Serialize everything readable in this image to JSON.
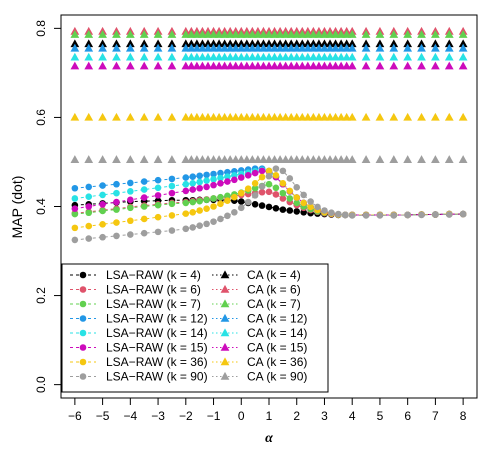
{
  "chart_data": {
    "type": "scatter",
    "title": "",
    "xlabel": "α",
    "ylabel": "MAP (dot)",
    "xlim": [
      -6.5,
      8.5
    ],
    "ylim": [
      -0.03,
      0.83
    ],
    "xticks": [
      "−6",
      "−5",
      "−4",
      "−3",
      "−2",
      "−1",
      "0",
      "1",
      "2",
      "3",
      "4",
      "5",
      "6",
      "7",
      "8"
    ],
    "yticks": [
      "0.0",
      "0.2",
      "0.4",
      "0.6",
      "0.8"
    ],
    "grid": false,
    "legend_position": "bottom-left",
    "lsa_x": [
      -6,
      -5.5,
      -5,
      -4.5,
      -4,
      -3.5,
      -3,
      -2.5,
      -2,
      -1.75,
      -1.5,
      -1.25,
      -1,
      -0.75,
      -0.5,
      -0.25,
      0,
      0.25,
      0.5,
      0.75,
      1,
      1.25,
      1.5,
      1.75,
      2,
      2.25,
      2.5,
      2.75,
      3,
      3.25,
      3.5,
      3.75,
      4,
      4.5,
      5,
      5.5,
      6,
      6.5,
      7,
      7.5,
      8
    ],
    "ca_x": [
      -6,
      -5.5,
      -5,
      -4.5,
      -4,
      -3.5,
      -3,
      -2.5,
      -2,
      -1.8,
      -1.6,
      -1.4,
      -1.2,
      -1,
      -0.8,
      -0.6,
      -0.4,
      -0.2,
      0,
      0.2,
      0.4,
      0.6,
      0.8,
      1,
      1.2,
      1.4,
      1.6,
      1.8,
      2,
      2.2,
      2.4,
      2.6,
      2.8,
      3,
      3.2,
      3.4,
      3.6,
      3.8,
      4,
      4.5,
      5,
      5.5,
      6,
      6.5,
      7,
      7.5,
      8
    ],
    "series": [
      {
        "name": "LSA−RAW (k = 4)",
        "marker": "circle",
        "color": "#000000",
        "values": [
          0.403,
          0.405,
          0.407,
          0.409,
          0.411,
          0.412,
          0.413,
          0.414,
          0.414,
          0.414,
          0.415,
          0.415,
          0.415,
          0.415,
          0.414,
          0.413,
          0.411,
          0.408,
          0.405,
          0.402,
          0.399,
          0.396,
          0.393,
          0.391,
          0.389,
          0.387,
          0.385,
          0.384,
          0.383,
          0.382,
          0.381,
          0.381,
          0.381,
          0.381,
          0.381,
          0.381,
          0.381,
          0.382,
          0.382,
          0.383,
          0.383
        ]
      },
      {
        "name": "LSA−RAW (k = 6)",
        "marker": "circle",
        "color": "#DF536B",
        "values": [
          0.385,
          0.388,
          0.392,
          0.395,
          0.399,
          0.402,
          0.405,
          0.408,
          0.41,
          0.412,
          0.414,
          0.416,
          0.418,
          0.42,
          0.422,
          0.424,
          0.426,
          0.428,
          0.43,
          0.432,
          0.433,
          0.427,
          0.418,
          0.41,
          0.403,
          0.397,
          0.392,
          0.388,
          0.385,
          0.383,
          0.382,
          0.381,
          0.381,
          0.381,
          0.381,
          0.381,
          0.381,
          0.382,
          0.382,
          0.383,
          0.383
        ]
      },
      {
        "name": "LSA−RAW (k = 7)",
        "marker": "circle",
        "color": "#61D04F",
        "values": [
          0.383,
          0.386,
          0.39,
          0.393,
          0.397,
          0.4,
          0.403,
          0.406,
          0.408,
          0.41,
          0.412,
          0.415,
          0.418,
          0.421,
          0.424,
          0.427,
          0.431,
          0.436,
          0.441,
          0.446,
          0.45,
          0.442,
          0.43,
          0.418,
          0.408,
          0.4,
          0.394,
          0.389,
          0.386,
          0.384,
          0.382,
          0.381,
          0.381,
          0.381,
          0.381,
          0.381,
          0.381,
          0.382,
          0.382,
          0.383,
          0.383
        ]
      },
      {
        "name": "LSA−RAW (k = 12)",
        "marker": "circle",
        "color": "#2297E6",
        "values": [
          0.441,
          0.444,
          0.447,
          0.45,
          0.453,
          0.456,
          0.459,
          0.462,
          0.465,
          0.467,
          0.469,
          0.471,
          0.473,
          0.475,
          0.477,
          0.479,
          0.481,
          0.483,
          0.485,
          0.485,
          0.48,
          0.467,
          0.45,
          0.434,
          0.42,
          0.408,
          0.399,
          0.392,
          0.387,
          0.384,
          0.382,
          0.381,
          0.381,
          0.381,
          0.381,
          0.381,
          0.381,
          0.382,
          0.382,
          0.383,
          0.383
        ]
      },
      {
        "name": "LSA−RAW (k = 14)",
        "marker": "circle",
        "color": "#28E2E5",
        "values": [
          0.418,
          0.422,
          0.426,
          0.43,
          0.434,
          0.438,
          0.442,
          0.446,
          0.45,
          0.452,
          0.455,
          0.458,
          0.461,
          0.464,
          0.467,
          0.47,
          0.473,
          0.476,
          0.479,
          0.482,
          0.478,
          0.466,
          0.45,
          0.434,
          0.42,
          0.408,
          0.399,
          0.392,
          0.387,
          0.384,
          0.382,
          0.381,
          0.381,
          0.381,
          0.381,
          0.381,
          0.381,
          0.382,
          0.382,
          0.383,
          0.383
        ]
      },
      {
        "name": "LSA−RAW (k = 15)",
        "marker": "circle",
        "color": "#CD0BBC",
        "values": [
          0.395,
          0.4,
          0.405,
          0.41,
          0.415,
          0.42,
          0.425,
          0.43,
          0.435,
          0.438,
          0.441,
          0.444,
          0.448,
          0.452,
          0.456,
          0.46,
          0.465,
          0.47,
          0.475,
          0.48,
          0.478,
          0.466,
          0.45,
          0.434,
          0.42,
          0.408,
          0.399,
          0.392,
          0.387,
          0.384,
          0.382,
          0.381,
          0.381,
          0.381,
          0.381,
          0.381,
          0.381,
          0.382,
          0.382,
          0.383,
          0.383
        ]
      },
      {
        "name": "LSA−RAW (k = 36)",
        "marker": "circle",
        "color": "#F5C710",
        "values": [
          0.352,
          0.356,
          0.36,
          0.364,
          0.368,
          0.372,
          0.376,
          0.38,
          0.384,
          0.387,
          0.391,
          0.395,
          0.4,
          0.406,
          0.413,
          0.421,
          0.43,
          0.44,
          0.452,
          0.466,
          0.48,
          0.47,
          0.452,
          0.435,
          0.42,
          0.408,
          0.399,
          0.392,
          0.387,
          0.384,
          0.382,
          0.381,
          0.381,
          0.381,
          0.381,
          0.381,
          0.381,
          0.382,
          0.382,
          0.383,
          0.383
        ]
      },
      {
        "name": "LSA−RAW (k = 90)",
        "marker": "circle",
        "color": "#9E9E9E",
        "values": [
          0.325,
          0.328,
          0.331,
          0.334,
          0.337,
          0.34,
          0.343,
          0.346,
          0.35,
          0.353,
          0.357,
          0.361,
          0.366,
          0.372,
          0.379,
          0.387,
          0.397,
          0.41,
          0.425,
          0.445,
          0.468,
          0.485,
          0.48,
          0.463,
          0.443,
          0.426,
          0.411,
          0.399,
          0.391,
          0.386,
          0.383,
          0.381,
          0.38,
          0.38,
          0.38,
          0.38,
          0.381,
          0.381,
          0.382,
          0.382,
          0.383
        ]
      },
      {
        "name": "CA (k = 4)",
        "marker": "triangle",
        "color": "#000000",
        "const": 0.765
      },
      {
        "name": "CA (k = 6)",
        "marker": "triangle",
        "color": "#DF536B",
        "const": 0.793
      },
      {
        "name": "CA (k = 7)",
        "marker": "triangle",
        "color": "#61D04F",
        "const": 0.786
      },
      {
        "name": "CA (k = 12)",
        "marker": "triangle",
        "color": "#2297E6",
        "const": 0.755
      },
      {
        "name": "CA (k = 14)",
        "marker": "triangle",
        "color": "#28E2E5",
        "const": 0.735
      },
      {
        "name": "CA (k = 15)",
        "marker": "triangle",
        "color": "#CD0BBC",
        "const": 0.715
      },
      {
        "name": "CA (k = 36)",
        "marker": "triangle",
        "color": "#F5C710",
        "const": 0.6
      },
      {
        "name": "CA (k = 90)",
        "marker": "triangle",
        "color": "#9E9E9E",
        "const": 0.505
      }
    ],
    "legend_left": [
      "LSA−RAW (k = 4)",
      "LSA−RAW (k = 6)",
      "LSA−RAW (k = 7)",
      "LSA−RAW (k = 12)",
      "LSA−RAW (k = 14)",
      "LSA−RAW (k = 15)",
      "LSA−RAW (k = 36)",
      "LSA−RAW (k = 90)"
    ],
    "legend_right": [
      "CA (k = 4)",
      "CA (k = 6)",
      "CA (k = 7)",
      "CA (k = 12)",
      "CA (k = 14)",
      "CA (k = 15)",
      "CA (k = 36)",
      "CA (k = 90)"
    ]
  }
}
